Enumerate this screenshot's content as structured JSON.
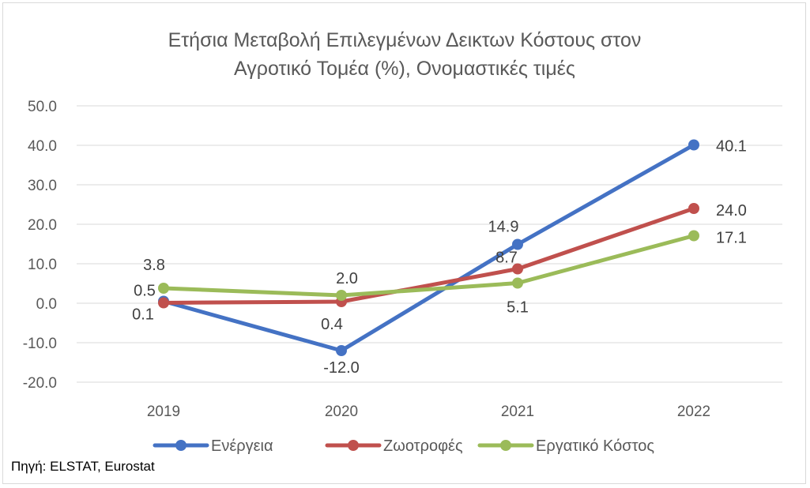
{
  "chart_data": {
    "type": "line",
    "title": "Ετήσια Μεταβολή Επιλεγμένων Δεικτων Κόστους στον Αγροτικό Τομέα (%), Ονομαστικές τιμές",
    "title_lines": [
      "Ετήσια Μεταβολή Επιλεγμένων Δεικτων Κόστους στον",
      "Αγροτικό Τομέα (%), Ονομαστικές τιμές"
    ],
    "categories": [
      "2019",
      "2020",
      "2021",
      "2022"
    ],
    "ylim": [
      -20,
      50
    ],
    "yticks": [
      -20,
      -10,
      0,
      10,
      20,
      30,
      40,
      50
    ],
    "ytick_labels": [
      "-20.0",
      "-10.0",
      "0.0",
      "10.0",
      "20.0",
      "30.0",
      "40.0",
      "50.0"
    ],
    "grid": true,
    "legend_position": "bottom",
    "series": [
      {
        "name": "Ενέργεια",
        "color": "#4472c4",
        "values": [
          0.5,
          -12.0,
          14.9,
          40.1
        ],
        "labels": [
          "0.5",
          "-12.0",
          "14.9",
          "40.1"
        ]
      },
      {
        "name": "Ζωοτροφές",
        "color": "#c0504d",
        "values": [
          0.1,
          0.4,
          8.7,
          24.0
        ],
        "labels": [
          "0.1",
          "0.4",
          "8.7",
          "24.0"
        ]
      },
      {
        "name": "Εργατικό Κόστος",
        "color": "#9bbb59",
        "values": [
          3.8,
          2.0,
          5.1,
          17.1
        ],
        "labels": [
          "3.8",
          "2.0",
          "5.1",
          "17.1"
        ]
      }
    ]
  },
  "source": "Πηγή: ELSTAT, Eurostat"
}
